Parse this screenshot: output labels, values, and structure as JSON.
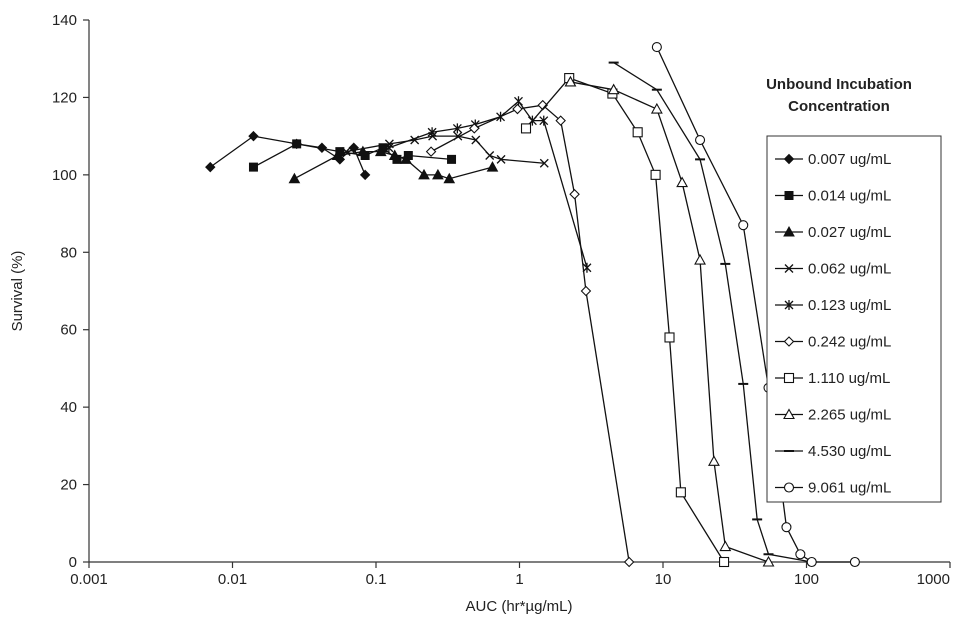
{
  "chart_data": {
    "type": "line",
    "x_scale": "log",
    "xlim": [
      0.001,
      1000
    ],
    "ylim": [
      0,
      140
    ],
    "x_ticks": [
      "0.001",
      "0.01",
      "0.1",
      "1",
      "10",
      "100",
      "1000"
    ],
    "y_ticks": [
      "0",
      "20",
      "40",
      "60",
      "80",
      "100",
      "120",
      "140"
    ],
    "xlabel": "AUC (hr*µg/mL)",
    "ylabel": "Survival (%)",
    "legend_title_line1": "Unbound Incubation",
    "legend_title_line2": "Concentration",
    "legend_position": "right",
    "grid": false,
    "series": [
      {
        "name": "0.007 ug/mL",
        "marker": "diamond-filled",
        "x": [
          0.007,
          0.014,
          0.028,
          0.042,
          0.056,
          0.07,
          0.084
        ],
        "y": [
          102,
          110,
          108,
          107,
          104,
          107,
          100
        ]
      },
      {
        "name": "0.014 ug/mL",
        "marker": "square-filled",
        "x": [
          0.014,
          0.028,
          0.056,
          0.084,
          0.112,
          0.14,
          0.168,
          0.336
        ],
        "y": [
          102,
          108,
          106,
          105,
          107,
          104,
          105,
          104
        ]
      },
      {
        "name": "0.027 ug/mL",
        "marker": "triangle-filled",
        "x": [
          0.027,
          0.054,
          0.081,
          0.108,
          0.135,
          0.162,
          0.216,
          0.27,
          0.324,
          0.648
        ],
        "y": [
          99,
          105,
          106,
          106,
          105,
          104,
          100,
          100,
          99,
          102
        ]
      },
      {
        "name": "0.062 ug/mL",
        "marker": "x",
        "x": [
          0.062,
          0.124,
          0.186,
          0.248,
          0.372,
          0.496,
          0.62,
          0.744,
          1.488
        ],
        "y": [
          106,
          108,
          109,
          110,
          110,
          109,
          105,
          104,
          103
        ]
      },
      {
        "name": "0.123 ug/mL",
        "marker": "star",
        "x": [
          0.123,
          0.246,
          0.369,
          0.492,
          0.738,
          0.984,
          1.23,
          1.476,
          2.952
        ],
        "y": [
          107,
          111,
          112,
          113,
          115,
          119,
          114,
          114,
          76
        ]
      },
      {
        "name": "0.242 ug/mL",
        "marker": "diamond-open",
        "x": [
          0.242,
          0.484,
          0.968,
          1.452,
          1.936,
          2.42,
          2.904,
          5.808
        ],
        "y": [
          106,
          112,
          117,
          118,
          114,
          95,
          70,
          0
        ]
      },
      {
        "name": "1.110 ug/mL",
        "marker": "square-open",
        "x": [
          1.11,
          2.22,
          4.44,
          6.66,
          8.88,
          11.1,
          13.32,
          26.64
        ],
        "y": [
          112,
          125,
          121,
          111,
          100,
          58,
          18,
          0
        ]
      },
      {
        "name": "2.265 ug/mL",
        "marker": "triangle-open",
        "x": [
          2.265,
          4.53,
          9.06,
          13.59,
          18.12,
          22.65,
          27.18,
          54.36
        ],
        "y": [
          124,
          122,
          117,
          98,
          78,
          26,
          4,
          0
        ]
      },
      {
        "name": "4.530 ug/mL",
        "marker": "dash",
        "x": [
          4.53,
          9.06,
          18.12,
          27.18,
          36.24,
          45.3,
          54.36,
          108.72
        ],
        "y": [
          129,
          122,
          104,
          77,
          46,
          11,
          2,
          0
        ]
      },
      {
        "name": "9.061 ug/mL",
        "marker": "circle-open",
        "x": [
          9.061,
          18.122,
          36.244,
          54.366,
          72.488,
          90.61,
          108.732,
          217.464
        ],
        "y": [
          133,
          109,
          87,
          45,
          9,
          2,
          0,
          0
        ]
      }
    ]
  }
}
